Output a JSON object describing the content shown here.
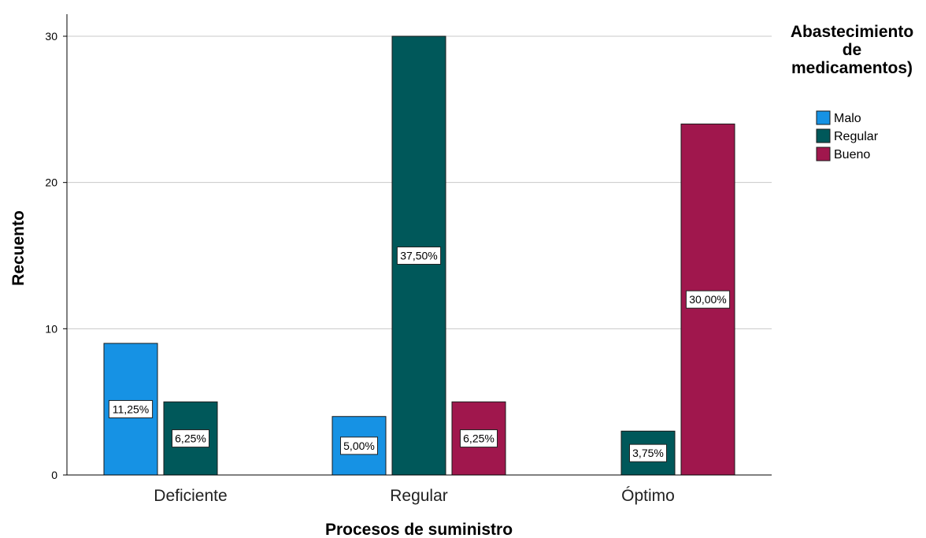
{
  "chart_data": {
    "type": "bar",
    "categories": [
      "Deficiente",
      "Regular",
      "Óptimo"
    ],
    "series": [
      {
        "name": "Malo",
        "color": "#1692E4",
        "values": [
          9,
          4,
          null
        ],
        "labels": [
          "11,25%",
          "5,00%",
          null
        ]
      },
      {
        "name": "Regular",
        "color": "#00585A",
        "values": [
          5,
          30,
          3
        ],
        "labels": [
          "6,25%",
          "37,50%",
          "3,75%"
        ]
      },
      {
        "name": "Bueno",
        "color": "#A0174D",
        "values": [
          null,
          5,
          24
        ],
        "labels": [
          null,
          "6,25%",
          "30,00%"
        ]
      }
    ],
    "xlabel": "Procesos de suministro",
    "ylabel": "Recuento",
    "ylim": [
      0,
      30
    ],
    "yticks": [
      0,
      10,
      20,
      30
    ],
    "grid": true,
    "legend": {
      "title_lines": [
        "Abastecimiento",
        "de",
        "medicamentos)"
      ],
      "placement": "top-right"
    }
  }
}
